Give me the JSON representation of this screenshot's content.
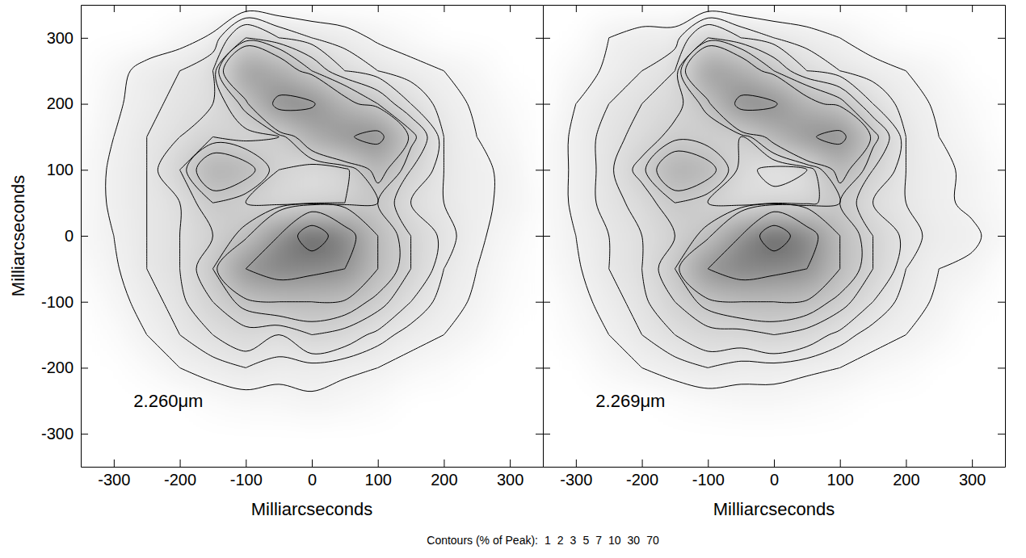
{
  "chart_data": [
    {
      "type": "contour",
      "annotation": "2.260μm",
      "xlabel": "Milliarcseconds",
      "ylabel": "Milliarcseconds",
      "x": [
        -350,
        -300,
        -250,
        -200,
        -150,
        -100,
        -50,
        0,
        50,
        100,
        150,
        200,
        250,
        300,
        350
      ],
      "y": [
        350,
        300,
        250,
        200,
        150,
        100,
        50,
        0,
        -50,
        -100,
        -150,
        -200,
        -250,
        -300,
        -350
      ],
      "values": [
        [
          0,
          0,
          0,
          0,
          0,
          0,
          0,
          0,
          0,
          0,
          0,
          0,
          0,
          0,
          0
        ],
        [
          0,
          0,
          0,
          0.5,
          1.2,
          5,
          3,
          2,
          1.5,
          0.8,
          0.3,
          0,
          0,
          0,
          0
        ],
        [
          0,
          0.5,
          1.5,
          2,
          3,
          25,
          15,
          7,
          3,
          2,
          1.5,
          1,
          0.5,
          0,
          0
        ],
        [
          0,
          0.8,
          1.5,
          2.5,
          3,
          8,
          35,
          32,
          12,
          7,
          3,
          1.5,
          0.8,
          0.3,
          0
        ],
        [
          0.2,
          1,
          2,
          3,
          5,
          4,
          5,
          15,
          28,
          35,
          8,
          2,
          1,
          0.5,
          0
        ],
        [
          0.3,
          1.2,
          2,
          5,
          15,
          12,
          5,
          3,
          4,
          12,
          5,
          2,
          1.2,
          0.8,
          0
        ],
        [
          0.3,
          1.2,
          2,
          3,
          7,
          5,
          3.5,
          4,
          5,
          7,
          3,
          2,
          1.2,
          0.8,
          0.2
        ],
        [
          0.5,
          1,
          2,
          3,
          5,
          8,
          30,
          100,
          40,
          10,
          5,
          2.5,
          1.2,
          0.5,
          0
        ],
        [
          0.2,
          0.8,
          2,
          3,
          7,
          30,
          40,
          35,
          30,
          10,
          5,
          2,
          1,
          0.3,
          0
        ],
        [
          0,
          0.5,
          1.5,
          2.5,
          5,
          8,
          10,
          10,
          9,
          6,
          3,
          1.5,
          0.8,
          0.2,
          0
        ],
        [
          0,
          0.2,
          1,
          2,
          3,
          4,
          3,
          5,
          4,
          2.5,
          1.5,
          1,
          0.5,
          0,
          0
        ],
        [
          0,
          0,
          0.3,
          1,
          1.5,
          2,
          1.5,
          1.5,
          1.2,
          1,
          0.5,
          0.3,
          0,
          0,
          0
        ],
        [
          0,
          0,
          0,
          0,
          0.3,
          0.5,
          0.5,
          0.8,
          0.6,
          0.3,
          0,
          0,
          0,
          0,
          0
        ],
        [
          0,
          0,
          0,
          0,
          0,
          0,
          0,
          0,
          0,
          0,
          0,
          0,
          0,
          0,
          0
        ],
        [
          0,
          0,
          0,
          0,
          0,
          0,
          0,
          0,
          0,
          0,
          0,
          0,
          0,
          0,
          0
        ]
      ],
      "xlim": [
        -350,
        350
      ],
      "ylim": [
        -350,
        350
      ],
      "xticks": [
        -300,
        -200,
        -100,
        0,
        100,
        200,
        300
      ],
      "yticks": [
        -300,
        -200,
        -100,
        0,
        100,
        200,
        300
      ]
    },
    {
      "type": "contour",
      "annotation": "2.269μm",
      "xlabel": "Milliarcseconds",
      "x": [
        -350,
        -300,
        -250,
        -200,
        -150,
        -100,
        -50,
        0,
        50,
        100,
        150,
        200,
        250,
        300,
        350
      ],
      "y": [
        350,
        300,
        250,
        200,
        150,
        100,
        50,
        0,
        -50,
        -100,
        -150,
        -200,
        -250,
        -300,
        -350
      ],
      "values": [
        [
          0,
          0,
          0,
          0,
          0,
          0,
          0,
          0,
          0,
          0,
          0,
          0,
          0,
          0,
          0
        ],
        [
          0,
          0,
          1,
          1.5,
          1.5,
          5,
          3,
          2,
          1.5,
          1,
          0.3,
          0,
          0,
          0,
          0
        ],
        [
          0,
          0.5,
          1.2,
          2,
          3,
          25,
          15,
          7,
          3,
          2,
          1.5,
          1,
          0.5,
          0,
          0
        ],
        [
          0,
          1,
          2,
          3,
          4,
          8,
          35,
          32,
          12,
          8,
          3,
          1.5,
          0.8,
          0.3,
          0
        ],
        [
          0.3,
          1.2,
          2.5,
          3.5,
          6,
          5,
          5,
          12,
          28,
          35,
          8,
          2,
          1,
          0.5,
          0
        ],
        [
          0.3,
          1.2,
          2.5,
          6,
          15,
          12,
          4,
          2,
          3,
          12,
          5,
          2,
          1.2,
          0.8,
          0.2
        ],
        [
          0.3,
          1.2,
          2.5,
          3.5,
          7,
          5,
          3,
          4,
          4,
          7,
          3,
          2,
          1.2,
          0.8,
          0.3
        ],
        [
          0.3,
          1,
          2,
          3,
          5,
          8,
          30,
          100,
          40,
          10,
          5,
          2.5,
          1.5,
          1.2,
          0.5
        ],
        [
          0.2,
          0.8,
          2,
          3,
          7,
          30,
          40,
          35,
          30,
          10,
          5,
          2,
          1,
          0.8,
          0
        ],
        [
          0,
          0.5,
          1.5,
          2.5,
          5,
          8,
          10,
          10,
          9,
          6,
          3,
          1.5,
          0.8,
          0.2,
          0
        ],
        [
          0,
          0.3,
          1,
          2,
          3,
          4,
          4,
          5,
          4,
          2.5,
          1.5,
          1,
          0.5,
          0,
          0
        ],
        [
          0,
          0,
          0.5,
          1,
          1.5,
          2,
          1.5,
          1.5,
          1.2,
          1,
          0.5,
          0.3,
          0,
          0,
          0
        ],
        [
          0,
          0,
          0,
          0,
          0.2,
          0.4,
          0.5,
          0.5,
          0.4,
          0.2,
          0,
          0,
          0,
          0,
          0
        ],
        [
          0,
          0,
          0,
          0,
          0,
          0,
          0,
          0,
          0,
          0,
          0,
          0,
          0,
          0,
          0
        ],
        [
          0,
          0,
          0,
          0,
          0,
          0,
          0,
          0,
          0,
          0,
          0,
          0,
          0,
          0,
          0
        ]
      ],
      "xlim": [
        -350,
        350
      ],
      "ylim": [
        -350,
        350
      ],
      "xticks": [
        -300,
        -200,
        -100,
        0,
        100,
        200,
        300
      ],
      "yticks": [
        -300,
        -200,
        -100,
        0,
        100,
        200,
        300
      ],
      "tick_labels": "x"
    }
  ],
  "contours": {
    "label": "Contours (% of Peak):",
    "levels": [
      1,
      2,
      3,
      5,
      7,
      10,
      30,
      70
    ]
  }
}
